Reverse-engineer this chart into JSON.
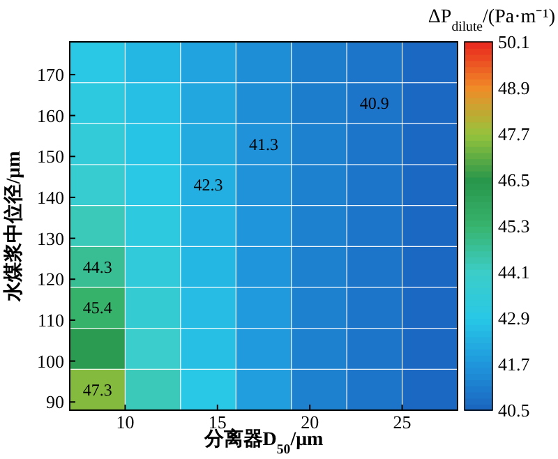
{
  "chart_data": {
    "type": "scatter",
    "marker": "square",
    "xlabel": "分离器D$_{50}$/μm",
    "ylabel": "水煤浆中位径/μm",
    "clabel": "ΔP$_{dilute}$/(Pa·m⁻¹)",
    "xlim": [
      7,
      28
    ],
    "xticks": [
      10,
      15,
      20,
      25
    ],
    "ylim": [
      88,
      178
    ],
    "yticks": [
      90,
      100,
      110,
      120,
      130,
      140,
      150,
      160,
      170
    ],
    "clim": [
      40.5,
      50.1
    ],
    "cticks": [
      40.5,
      41.7,
      42.9,
      44.1,
      45.3,
      46.5,
      47.7,
      48.9,
      50.1
    ],
    "x": [
      8.5,
      11.5,
      14.5,
      17.5,
      20.5,
      23.5,
      26.5,
      8.5,
      11.5,
      14.5,
      17.5,
      20.5,
      23.5,
      26.5,
      8.5,
      11.5,
      14.5,
      17.5,
      20.5,
      23.5,
      26.5,
      8.5,
      11.5,
      14.5,
      17.5,
      20.5,
      23.5,
      26.5,
      8.5,
      11.5,
      14.5,
      17.5,
      20.5,
      23.5,
      26.5,
      8.5,
      11.5,
      14.5,
      17.5,
      20.5,
      23.5,
      26.5,
      8.5,
      11.5,
      14.5,
      17.5,
      20.5,
      23.5,
      26.5,
      8.5,
      11.5,
      14.5,
      17.5,
      20.5,
      23.5,
      26.5,
      8.5,
      11.5,
      14.5,
      17.5,
      20.5,
      23.5,
      26.5
    ],
    "values": [
      93,
      93,
      93,
      93,
      93,
      93,
      93,
      103,
      103,
      103,
      103,
      103,
      103,
      103,
      113,
      113,
      113,
      113,
      113,
      113,
      113,
      123,
      123,
      123,
      123,
      123,
      123,
      123,
      133,
      133,
      133,
      133,
      133,
      133,
      133,
      143,
      143,
      143,
      143,
      143,
      143,
      143,
      153,
      153,
      153,
      153,
      153,
      153,
      153,
      163,
      163,
      163,
      163,
      163,
      163,
      163,
      173,
      173,
      173,
      173,
      173,
      173,
      173
    ],
    "cvalues": [
      47.5,
      44.3,
      42.9,
      41.9,
      41.2,
      40.9,
      40.6,
      46.3,
      44.0,
      42.7,
      41.8,
      41.2,
      40.9,
      40.6,
      45.4,
      43.7,
      42.6,
      41.8,
      41.2,
      40.9,
      40.6,
      44.8,
      43.4,
      42.5,
      41.7,
      41.2,
      40.9,
      40.6,
      44.3,
      43.2,
      42.4,
      41.7,
      41.2,
      40.9,
      40.6,
      43.8,
      43.0,
      42.3,
      41.6,
      41.2,
      40.9,
      40.6,
      43.5,
      42.8,
      42.2,
      41.6,
      41.2,
      40.9,
      40.6,
      43.2,
      42.7,
      42.1,
      41.5,
      41.1,
      40.9,
      40.6,
      43.0,
      42.5,
      42.0,
      41.5,
      41.1,
      40.9,
      40.6
    ],
    "annotations": [
      {
        "text": "40.9",
        "x": 23.5,
        "y": 163
      },
      {
        "text": "41.3",
        "x": 17.5,
        "y": 153
      },
      {
        "text": "42.3",
        "x": 14.5,
        "y": 143
      },
      {
        "text": "44.3",
        "x": 8.5,
        "y": 123
      },
      {
        "text": "45.4",
        "x": 8.5,
        "y": 113
      },
      {
        "text": "47.3",
        "x": 8.5,
        "y": 93
      }
    ]
  }
}
